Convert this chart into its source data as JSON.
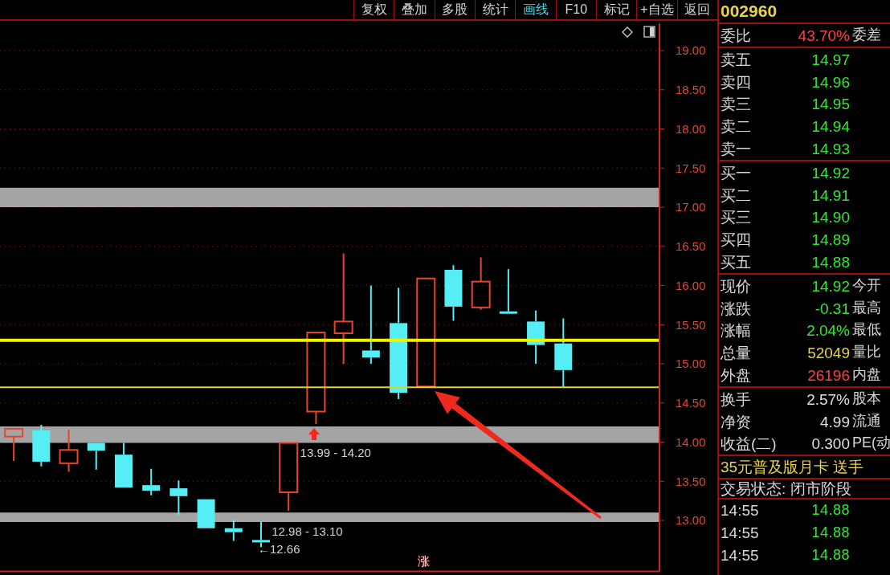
{
  "chart_data": [
    {
      "type": "candlestick",
      "categories": [
        null,
        null,
        null,
        null,
        null,
        null,
        null,
        null,
        null,
        null,
        null,
        null,
        null,
        null,
        null,
        null,
        null,
        null,
        null,
        null,
        null,
        null,
        null,
        null
      ],
      "ohlc": [
        [
          14.07,
          14.17,
          13.76,
          14.17
        ],
        [
          14.15,
          14.22,
          13.69,
          13.75
        ],
        [
          13.73,
          14.16,
          13.62,
          13.9
        ],
        [
          13.99,
          13.99,
          13.65,
          13.89
        ],
        [
          13.84,
          13.99,
          13.42,
          13.42
        ],
        [
          13.45,
          13.66,
          13.32,
          13.38
        ],
        [
          13.41,
          13.51,
          13.07,
          13.31
        ],
        [
          13.27,
          13.27,
          12.9,
          12.9
        ],
        [
          12.9,
          13.01,
          12.74,
          12.85
        ],
        [
          12.75,
          12.98,
          12.66,
          12.72
        ],
        [
          13.36,
          13.99,
          13.12,
          13.99
        ],
        [
          14.39,
          15.4,
          14.23,
          15.4
        ],
        [
          15.39,
          16.41,
          15.0,
          15.54
        ],
        [
          15.17,
          16.0,
          15.0,
          15.08
        ],
        [
          15.52,
          15.97,
          14.55,
          14.63
        ],
        [
          14.71,
          16.09,
          14.71,
          16.09
        ],
        [
          16.2,
          16.26,
          15.55,
          15.73
        ],
        [
          15.72,
          16.36,
          15.69,
          16.05
        ],
        [
          15.67,
          16.21,
          15.64,
          15.64
        ],
        [
          15.54,
          15.68,
          15.0,
          15.24
        ],
        [
          15.26,
          15.58,
          14.7,
          14.92
        ],
        null,
        null,
        null
      ],
      "colors": [
        "#e8462c",
        "#55eef5",
        "#e8462c",
        "#55eef5",
        "#55eef5",
        "#55eef5",
        "#55eef5",
        "#55eef5",
        "#55eef5",
        "#55eef5",
        "#e8462c",
        "#e8462c",
        "#e8462c",
        "#55eef5",
        "#55eef5",
        "#e8462c",
        "#55eef5",
        "#e8462c",
        "#55eef5",
        "#55eef5",
        "#55eef5",
        null,
        null,
        null
      ],
      "ylim": [
        12.35,
        19.35
      ],
      "yticks": [
        {
          "value": 13,
          "label": "13.00"
        },
        {
          "value": 13.5,
          "label": "13.50"
        },
        {
          "value": 14,
          "label": "14.00"
        },
        {
          "value": 14.5,
          "label": "14.50"
        },
        {
          "value": 15,
          "label": "15.00"
        },
        {
          "value": 15.5,
          "label": "15.50"
        },
        {
          "value": 16,
          "label": "16.00"
        },
        {
          "value": 16.5,
          "label": "16.50"
        },
        {
          "value": 17,
          "label": "17.00"
        },
        {
          "value": 17.5,
          "label": "17.50"
        },
        {
          "value": 18,
          "label": "18.00"
        },
        {
          "value": 18.5,
          "label": "18.50"
        },
        {
          "value": 19,
          "label": "19.00"
        }
      ],
      "grid": "y",
      "tick_labels": "y",
      "bands": [
        {
          "axis": "y",
          "from": 17.0,
          "to": 17.25,
          "color": "#a4a4a4"
        },
        {
          "axis": "y",
          "from": 13.99,
          "to": 14.2,
          "label": "13.99 - 14.20",
          "color": "#a4a4a4"
        },
        {
          "axis": "y",
          "from": 12.98,
          "to": 13.1,
          "label": "12.98 - 13.10",
          "color": "#a4a4a4"
        }
      ],
      "ref_lines": [
        {
          "axis": "y",
          "value": 15.3,
          "color": "#f2f200"
        },
        {
          "axis": "y",
          "value": 14.7,
          "color": "#e3d21c"
        }
      ],
      "annotations": [
        "←12.66",
        "涨"
      ]
    },
    {
      "type": "other",
      "categories": [
        "复权",
        "叠加",
        "多股",
        "统计",
        "画线",
        "F10",
        "标记",
        "+自选",
        "返回"
      ],
      "colors": [
        "#d4d4d4",
        "#d4d4d4",
        "#d4d4d4",
        "#d4d4d4",
        "#44d8ea",
        "#d4d4d4",
        "#d4d4d4",
        "#d4d4d4",
        "#d4d4d4"
      ]
    },
    {
      "type": "other",
      "title": "002960",
      "categories": [
        "委比",
        "卖五",
        "卖四",
        "卖三",
        "卖二",
        "卖一",
        "买一",
        "买二",
        "买三",
        "买四",
        "买五",
        "现价",
        "涨跌",
        "涨幅",
        "总量",
        "外盘",
        "换手",
        "净资",
        "收益(二)"
      ],
      "value_labels": [
        "43.70%",
        "14.97",
        "14.96",
        "14.95",
        "14.94",
        "14.93",
        "14.92",
        "14.91",
        "14.90",
        "14.89",
        "14.88",
        "14.92",
        "-0.31",
        "2.04%",
        "52049",
        "26196",
        "2.57%",
        "4.99",
        "0.300"
      ],
      "colors": [
        "#ff4040",
        "#33e633",
        "#33e633",
        "#33e633",
        "#33e633",
        "#33e633",
        "#33e633",
        "#33e633",
        "#33e633",
        "#33e633",
        "#33e633",
        "#33e633",
        "#33e633",
        "#33e633",
        "#e6d24a",
        "#ff4040",
        "#e0e0e0",
        "#e0e0e0",
        "#e0e0e0"
      ],
      "y2_categories": [
        "委差",
        null,
        null,
        null,
        null,
        null,
        null,
        null,
        null,
        null,
        null,
        "今开",
        "最高",
        "最低",
        "量比",
        "内盘",
        "股本",
        "流通",
        "PE(动"
      ],
      "annotations": [
        "35元普及版月卡 送手",
        "交易状态: 闭市阶段"
      ]
    },
    {
      "type": "other",
      "categories": [
        "14:55",
        "14:55",
        "14:55"
      ],
      "value_labels": [
        "14.88",
        "14.88",
        "14.88"
      ],
      "colors": [
        "#33e633",
        "#33e633",
        "#33e633"
      ]
    }
  ]
}
